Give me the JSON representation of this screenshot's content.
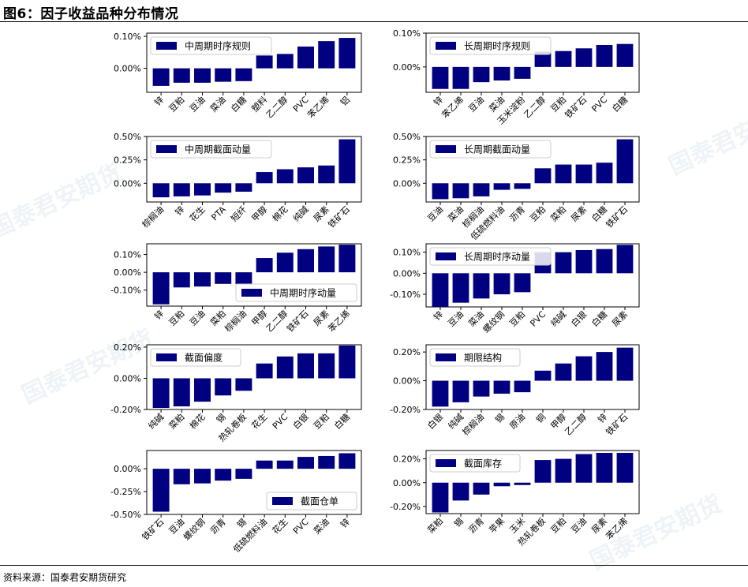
{
  "figure": {
    "title": "图6：因子收益品种分布情况",
    "source": "资料来源：国泰君安期货研究",
    "watermark": "国泰君安期货",
    "bar_color": "#000080"
  },
  "chart_data": [
    {
      "type": "bar",
      "legend_label": "中周期时序规则",
      "legend_loc": "upper-left",
      "categories": [
        "锌",
        "豆粕",
        "豆油",
        "菜油",
        "白糖",
        "塑料",
        "乙二醇",
        "PVC",
        "苯乙烯",
        "铝"
      ],
      "values": [
        -0.055,
        -0.045,
        -0.045,
        -0.042,
        -0.04,
        0.04,
        0.045,
        0.068,
        0.085,
        0.095
      ],
      "ylim": [
        -0.075,
        0.11
      ],
      "yticks": [
        0.1,
        0.0
      ],
      "ytick_labels": [
        "0.10%",
        "0.00%"
      ]
    },
    {
      "type": "bar",
      "legend_label": "长周期时序规则",
      "legend_loc": "upper-left",
      "categories": [
        "锌",
        "苯乙烯",
        "豆油",
        "菜油",
        "玉米淀粉",
        "乙二醇",
        "豆粕",
        "铁矿石",
        "PVC",
        "白糖"
      ],
      "values": [
        -0.065,
        -0.065,
        -0.045,
        -0.04,
        -0.035,
        0.045,
        0.047,
        0.055,
        0.065,
        0.068
      ],
      "ylim": [
        -0.075,
        0.1
      ],
      "yticks": [
        0.1,
        0.0
      ],
      "ytick_labels": [
        "0.10%",
        "0.00%"
      ]
    },
    {
      "type": "bar",
      "legend_label": "中周期截面动量",
      "legend_loc": "upper-left",
      "categories": [
        "棕榈油",
        "锌",
        "花生",
        "PTA",
        "短纤",
        "甲醇",
        "棉花",
        "纯碱",
        "尿素",
        "铁矿石"
      ],
      "values": [
        -0.15,
        -0.14,
        -0.13,
        -0.1,
        -0.09,
        0.12,
        0.15,
        0.17,
        0.19,
        0.47
      ],
      "ylim": [
        -0.2,
        0.5
      ],
      "yticks": [
        0.5,
        0.25,
        0.0
      ],
      "ytick_labels": [
        "0.50%",
        "0.25%",
        "0.00%"
      ]
    },
    {
      "type": "bar",
      "legend_label": "长周期截面动量",
      "legend_loc": "upper-left",
      "categories": [
        "豆油",
        "菜油",
        "棕榈油",
        "低硫燃料油",
        "沥青",
        "豆粕",
        "菜粕",
        "尿素",
        "白糖",
        "铁矿石"
      ],
      "values": [
        -0.17,
        -0.16,
        -0.14,
        -0.07,
        -0.06,
        0.16,
        0.2,
        0.2,
        0.22,
        0.47
      ],
      "ylim": [
        -0.2,
        0.5
      ],
      "yticks": [
        0.5,
        0.25,
        0.0
      ],
      "ytick_labels": [
        "0.50%",
        "0.25%",
        "0.00%"
      ]
    },
    {
      "type": "bar",
      "legend_label": "中周期时序动量",
      "legend_loc": "lower-right",
      "categories": [
        "锌",
        "豆粕",
        "豆油",
        "菜粕",
        "棕榈油",
        "甲醇",
        "乙二醇",
        "铁矿石",
        "尿素",
        "苯乙烯"
      ],
      "values": [
        -0.18,
        -0.085,
        -0.08,
        -0.065,
        -0.065,
        0.08,
        0.11,
        0.13,
        0.145,
        0.155
      ],
      "ylim": [
        -0.19,
        0.16
      ],
      "yticks": [
        0.1,
        0.0,
        -0.1
      ],
      "ytick_labels": [
        "0.10%",
        "0.00%",
        "-0.10%"
      ]
    },
    {
      "type": "bar",
      "legend_label": "长周期时序动量",
      "legend_loc": "upper-left",
      "categories": [
        "锌",
        "豆油",
        "菜油",
        "螺纹钢",
        "豆粕",
        "PVC",
        "纯碱",
        "白银",
        "白糖",
        "尿素"
      ],
      "values": [
        -0.16,
        -0.14,
        -0.12,
        -0.1,
        -0.09,
        0.1,
        0.1,
        0.11,
        0.115,
        0.135
      ],
      "ylim": [
        -0.16,
        0.14
      ],
      "yticks": [
        0.1,
        0.0,
        -0.1
      ],
      "ytick_labels": [
        "0.10%",
        "0.00%",
        "-0.10%"
      ]
    },
    {
      "type": "bar",
      "legend_label": "截面偏度",
      "legend_loc": "upper-left",
      "categories": [
        "纯碱",
        "菜粕",
        "棉花",
        "锡",
        "热轧卷板",
        "花生",
        "PVC",
        "白银",
        "豆粕",
        "白糖"
      ],
      "values": [
        -0.19,
        -0.18,
        -0.15,
        -0.11,
        -0.08,
        0.095,
        0.14,
        0.16,
        0.16,
        0.21
      ],
      "ylim": [
        -0.2,
        0.215
      ],
      "yticks": [
        0.2,
        0.0,
        -0.2
      ],
      "ytick_labels": [
        "0.20%",
        "0.00%",
        "-0.20%"
      ]
    },
    {
      "type": "bar",
      "legend_label": "期限结构",
      "legend_loc": "upper-left",
      "categories": [
        "白银",
        "纯碱",
        "棕榈油",
        "锡",
        "原油",
        "铜",
        "甲醇",
        "乙二醇",
        "锌",
        "铁矿石"
      ],
      "values": [
        -0.18,
        -0.15,
        -0.11,
        -0.09,
        -0.08,
        0.07,
        0.12,
        0.17,
        0.2,
        0.23
      ],
      "ylim": [
        -0.2,
        0.25
      ],
      "yticks": [
        0.2,
        0.0,
        -0.2
      ],
      "ytick_labels": [
        "0.20%",
        "0.00%",
        "-0.20%"
      ]
    },
    {
      "type": "bar",
      "legend_label": "截面仓单",
      "legend_loc": "lower-right",
      "categories": [
        "铁矿石",
        "豆油",
        "螺纹钢",
        "沥青",
        "锡",
        "低硫燃料油",
        "花生",
        "PVC",
        "菜油",
        "锌"
      ],
      "values": [
        -0.47,
        -0.17,
        -0.16,
        -0.13,
        -0.11,
        0.09,
        0.09,
        0.13,
        0.14,
        0.17
      ],
      "ylim": [
        -0.5,
        0.2
      ],
      "yticks": [
        0.0,
        -0.25,
        -0.5
      ],
      "ytick_labels": [
        "0.00%",
        "-0.25%",
        "-0.50%"
      ]
    },
    {
      "type": "bar",
      "legend_label": "截面库存",
      "legend_loc": "upper-left",
      "categories": [
        "菜粕",
        "锡",
        "沥青",
        "苹果",
        "玉米",
        "热轧卷板",
        "豆粕",
        "豆油",
        "尿素",
        "苯乙烯"
      ],
      "values": [
        -0.25,
        -0.15,
        -0.1,
        -0.03,
        -0.02,
        0.19,
        0.2,
        0.24,
        0.25,
        0.25
      ],
      "ylim": [
        -0.26,
        0.27
      ],
      "yticks": [
        0.2,
        0.0,
        -0.2
      ],
      "ytick_labels": [
        "0.20%",
        "0.00%",
        "-0.20%"
      ]
    }
  ]
}
